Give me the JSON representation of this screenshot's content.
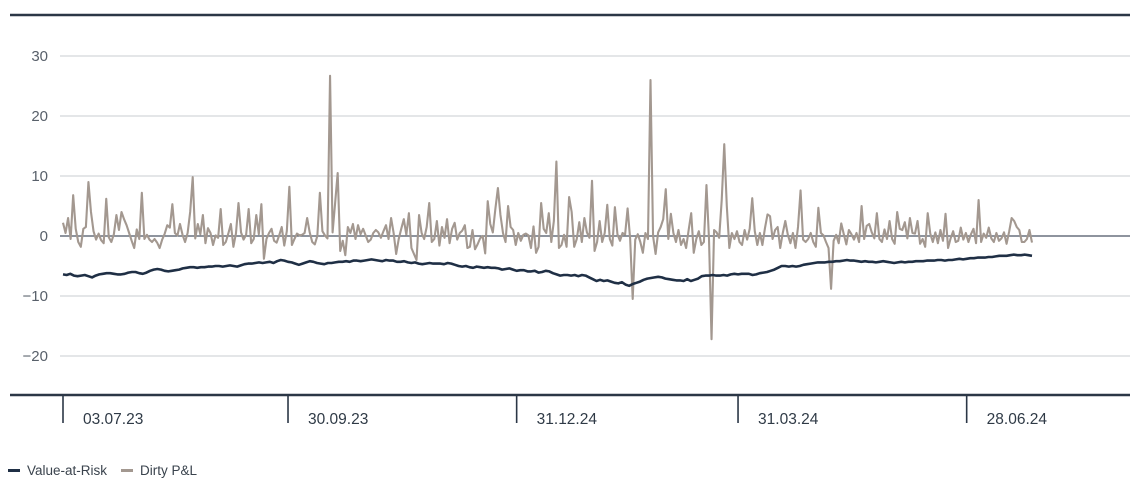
{
  "chart_data": {
    "type": "line",
    "title": "",
    "xlabel": "",
    "ylabel": "",
    "ylim": [
      -25,
      37
    ],
    "y_ticks": [
      30,
      20,
      10,
      0,
      -10,
      -20
    ],
    "y_tick_labels": [
      "30",
      "20",
      "10",
      "0",
      "−10",
      "−20"
    ],
    "x_tick_labels": [
      "03.07.23",
      "30.09.23",
      "31.12.24",
      "31.03.24",
      "28.06.24"
    ],
    "x_tick_index": [
      0,
      62,
      125,
      186,
      249
    ],
    "grid": "horizontal",
    "legend_position": "bottom-left",
    "series": [
      {
        "name": "Value-at-Risk",
        "color": "#1f2f45",
        "values": [
          -6.4,
          -6.5,
          -6.3,
          -6.6,
          -6.7,
          -6.6,
          -6.5,
          -6.7,
          -6.9,
          -6.6,
          -6.4,
          -6.3,
          -6.2,
          -6.2,
          -6.3,
          -6.4,
          -6.4,
          -6.3,
          -6.1,
          -6.0,
          -6.0,
          -6.2,
          -6.3,
          -6.1,
          -5.8,
          -5.6,
          -5.5,
          -5.6,
          -5.8,
          -5.9,
          -5.8,
          -5.7,
          -5.6,
          -5.4,
          -5.3,
          -5.2,
          -5.2,
          -5.3,
          -5.2,
          -5.2,
          -5.1,
          -5.1,
          -5.0,
          -5.0,
          -5.1,
          -5.0,
          -4.9,
          -5.0,
          -5.1,
          -4.9,
          -4.7,
          -4.6,
          -4.6,
          -4.5,
          -4.4,
          -4.5,
          -4.4,
          -4.3,
          -4.5,
          -4.2,
          -4.0,
          -4.1,
          -4.3,
          -4.4,
          -4.6,
          -4.8,
          -4.6,
          -4.4,
          -4.2,
          -4.3,
          -4.5,
          -4.6,
          -4.7,
          -4.5,
          -4.5,
          -4.4,
          -4.3,
          -4.3,
          -4.2,
          -4.3,
          -4.1,
          -4.1,
          -4.2,
          -4.1,
          -4.0,
          -3.9,
          -4.0,
          -4.1,
          -4.2,
          -4.0,
          -4.1,
          -4.1,
          -4.3,
          -4.3,
          -4.2,
          -4.4,
          -4.5,
          -4.4,
          -4.6,
          -4.7,
          -4.6,
          -4.5,
          -4.6,
          -4.6,
          -4.6,
          -4.7,
          -4.5,
          -4.6,
          -4.8,
          -5.0,
          -5.1,
          -5.0,
          -5.2,
          -5.3,
          -5.1,
          -5.2,
          -5.3,
          -5.2,
          -5.3,
          -5.3,
          -5.4,
          -5.6,
          -5.5,
          -5.4,
          -5.6,
          -5.8,
          -5.7,
          -5.7,
          -5.9,
          -5.9,
          -5.8,
          -6.1,
          -6.0,
          -5.8,
          -5.9,
          -6.2,
          -6.4,
          -6.6,
          -6.5,
          -6.5,
          -6.6,
          -6.5,
          -6.7,
          -6.5,
          -6.6,
          -6.9,
          -7.2,
          -7.5,
          -7.3,
          -7.5,
          -7.4,
          -7.6,
          -7.8,
          -7.9,
          -7.7,
          -8.1,
          -8.3,
          -8.0,
          -7.8,
          -7.6,
          -7.3,
          -7.1,
          -7.0,
          -6.9,
          -6.8,
          -6.9,
          -7.1,
          -7.2,
          -7.3,
          -7.4,
          -7.4,
          -7.5,
          -7.2,
          -7.5,
          -7.3,
          -7.1,
          -6.7,
          -6.6,
          -6.6,
          -6.5,
          -6.6,
          -6.6,
          -6.5,
          -6.6,
          -6.4,
          -6.3,
          -6.4,
          -6.3,
          -6.3,
          -6.3,
          -6.5,
          -6.4,
          -6.2,
          -6.1,
          -6.0,
          -5.8,
          -5.6,
          -5.3,
          -5.0,
          -5.0,
          -5.1,
          -5.0,
          -5.1,
          -5.0,
          -4.8,
          -4.7,
          -4.6,
          -4.5,
          -4.4,
          -4.4,
          -4.4,
          -4.3,
          -4.3,
          -4.2,
          -4.2,
          -4.1,
          -4.0,
          -4.1,
          -4.1,
          -4.2,
          -4.3,
          -4.2,
          -4.3,
          -4.3,
          -4.4,
          -4.3,
          -4.2,
          -4.3,
          -4.4,
          -4.5,
          -4.4,
          -4.3,
          -4.4,
          -4.3,
          -4.3,
          -4.2,
          -4.2,
          -4.2,
          -4.1,
          -4.1,
          -4.1,
          -4.0,
          -4.0,
          -4.1,
          -4.0,
          -4.0,
          -3.9,
          -3.8,
          -3.9,
          -3.8,
          -3.7,
          -3.7,
          -3.6,
          -3.6,
          -3.6,
          -3.5,
          -3.5,
          -3.4,
          -3.3,
          -3.3,
          -3.3,
          -3.2,
          -3.1,
          -3.2,
          -3.2,
          -3.1,
          -3.2,
          -3.3
        ]
      },
      {
        "name": "Dirty P&L",
        "color": "#a39890",
        "values": [
          2.2,
          0.5,
          3.0,
          -0.5,
          6.8,
          1.2,
          -1.0,
          -1.8,
          1.2,
          1.5,
          9.0,
          4.0,
          0.8,
          -0.6,
          0.4,
          -0.7,
          -1.2,
          6.2,
          -0.2,
          -1.0,
          0.3,
          3.5,
          1.0,
          4.0,
          2.8,
          1.8,
          0.5,
          -0.8,
          -2.0,
          1.1,
          -0.5,
          7.2,
          -0.5,
          0.2,
          -0.6,
          -1.0,
          -0.5,
          -1.1,
          -2.0,
          -0.6,
          0.4,
          1.8,
          1.4,
          5.3,
          0.5,
          0.1,
          2.0,
          0.2,
          -1.0,
          0.5,
          4.0,
          9.8,
          -0.4,
          2.0,
          0.3,
          3.5,
          -1.2,
          1.3,
          0.5,
          -1.5,
          0.1,
          -0.3,
          4.5,
          -1.5,
          -1.0,
          0.4,
          2.0,
          -1.8,
          0.4,
          5.5,
          0.6,
          -0.6,
          0.2,
          4.5,
          -1.2,
          -0.5,
          3.5,
          0.3,
          5.3,
          -3.8,
          -0.5,
          0.5,
          1.2,
          -0.8,
          -1.1,
          0.1,
          1.5,
          -1.6,
          0.8,
          8.2,
          -1.5,
          -0.5,
          0.4,
          0.1,
          0.2,
          0.5,
          3.0,
          0.6,
          -1.0,
          -1.4,
          0.0,
          7.2,
          0.8,
          0.1,
          -0.4,
          26.7,
          0.6,
          5.5,
          10.5,
          -2.5,
          -0.8,
          -3.2,
          1.5,
          0.5,
          2.0,
          -0.5,
          1.8,
          0.3,
          1.2,
          0.1,
          -1.0,
          -0.6,
          0.5,
          1.0,
          0.6,
          -0.3,
          0.8,
          1.8,
          -0.5,
          3.0,
          0.5,
          -3.0,
          -0.5,
          1.2,
          2.8,
          0.2,
          3.8,
          -2.0,
          -3.0,
          -4.0,
          3.5,
          0.5,
          -0.5,
          1.5,
          5.5,
          -1.0,
          -0.5,
          2.5,
          -1.6,
          1.5,
          -0.3,
          2.8,
          -1.2,
          1.2,
          2.2,
          -0.6,
          0.5,
          0.9,
          1.8,
          -2.0,
          -1.8,
          1.0,
          -2.2,
          -1.4,
          -0.4,
          0.0,
          -2.9,
          5.8,
          2.0,
          0.6,
          4.5,
          8.0,
          3.5,
          0.5,
          -1.0,
          5.0,
          1.5,
          1.0,
          -1.5,
          0.5,
          -0.8,
          0.2,
          0.4,
          0.1,
          -2.0,
          1.6,
          -2.8,
          -1.8,
          5.5,
          1.2,
          0.5,
          3.8,
          -1.0,
          2.5,
          12.4,
          -2.0,
          -1.5,
          0.2,
          -1.8,
          6.5,
          4.0,
          -1.8,
          -0.5,
          2.3,
          -1.0,
          3.0,
          0.6,
          -0.3,
          9.2,
          -2.5,
          -1.0,
          2.5,
          -1.0,
          0.5,
          5.2,
          -0.5,
          -1.6,
          4.8,
          0.3,
          -0.8,
          0.5,
          0.2,
          4.6,
          -0.5,
          -10.5,
          -0.6,
          0.3,
          -1.0,
          -2.8,
          0.5,
          -0.5,
          26.0,
          0.0,
          -3.0,
          0.6,
          1.5,
          2.8,
          7.8,
          -0.5,
          3.7,
          0.5,
          -1.0,
          1.0,
          -1.5,
          -0.5,
          -2.0,
          1.0,
          3.8,
          -2.8,
          -0.5,
          0.8,
          -1.5,
          -1.0,
          8.5,
          -0.5,
          -17.2,
          1.0,
          0.6,
          -0.3,
          6.0,
          15.3,
          5.0,
          -2.0,
          0.5,
          -0.5,
          0.8,
          -1.0,
          -1.5,
          1.0,
          -0.6,
          1.2,
          6.3,
          0.8,
          -1.5,
          0.5,
          -1.5,
          1.3,
          3.6,
          3.3,
          -0.5,
          1.0,
          1.5,
          -2.0,
          0.5,
          2.5,
          0.2,
          -1.2,
          0.5,
          -2.0,
          1.5,
          7.6,
          -0.6,
          -1.0,
          -0.5,
          0.5,
          -1.0,
          -1.8,
          4.7,
          0.5,
          0.1,
          -1.0,
          -2.0,
          -8.8,
          -0.8,
          0.2,
          -1.2,
          2.1,
          0.3,
          -1.4,
          1.0,
          0.3,
          -0.6,
          0.5,
          -1.0,
          5.0,
          -0.5,
          1.7,
          2.0,
          0.6,
          -0.4,
          3.8,
          -0.5,
          -1.0,
          1.1,
          -0.5,
          2.5,
          -0.5,
          -1.3,
          4.0,
          1.2,
          1.0,
          2.3,
          -0.4,
          3.0,
          0.5,
          0.4,
          2.5,
          -1.3,
          -0.5,
          -1.8,
          3.8,
          0.4,
          -1.0,
          0.6,
          -1.2,
          1.0,
          -0.8,
          3.7,
          -2.0,
          -0.4,
          0.8,
          -1.0,
          -0.8,
          1.4,
          -0.6,
          0.5,
          -1.0,
          0.3,
          1.2,
          -1.2,
          6.0,
          -1.0,
          0.4,
          -0.3,
          1.4,
          -0.4,
          -1.0,
          0.5,
          -0.8,
          -0.4,
          0.6,
          -1.3,
          0.7,
          3.0,
          2.5,
          1.5,
          1.0,
          -1.0,
          -1.0,
          -0.5,
          1.0,
          -1.1
        ]
      }
    ]
  }
}
